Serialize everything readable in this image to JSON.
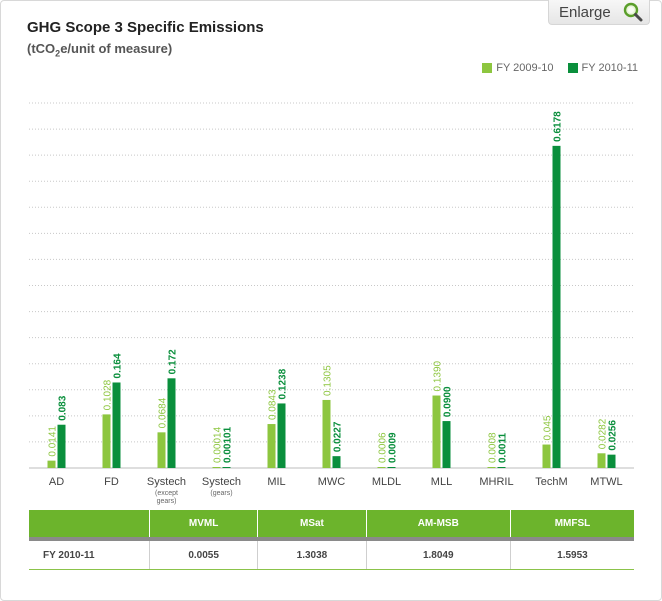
{
  "header": {
    "title": "GHG Scope 3 Specific Emissions",
    "subtitle_prefix": "(tCO",
    "subtitle_sub": "2",
    "subtitle_suffix": "e/unit of measure)"
  },
  "enlarge": {
    "label": "Enlarge",
    "icon": "magnifier-icon"
  },
  "colors": {
    "fy2009": "#8dc63f",
    "fy2010": "#0a8f3c",
    "table_header": "#6cb42c"
  },
  "chart_data": {
    "type": "bar",
    "title": "GHG Scope 3 Specific Emissions",
    "ylabel": "(tCO2e/unit of measure)",
    "legend": "top-right",
    "grid": true,
    "ylim": [
      0,
      0.7
    ],
    "categories": [
      {
        "label": "AD",
        "note": ""
      },
      {
        "label": "FD",
        "note": ""
      },
      {
        "label": "Systech",
        "note": "(except gears)"
      },
      {
        "label": "Systech",
        "note": "(gears)"
      },
      {
        "label": "MIL",
        "note": ""
      },
      {
        "label": "MWC",
        "note": ""
      },
      {
        "label": "MLDL",
        "note": ""
      },
      {
        "label": "MLL",
        "note": ""
      },
      {
        "label": "MHRIL",
        "note": ""
      },
      {
        "label": "TechM",
        "note": ""
      },
      {
        "label": "MTWL",
        "note": ""
      }
    ],
    "series": [
      {
        "name": "FY 2009-10",
        "color": "#8dc63f",
        "values": [
          0.0141,
          0.1028,
          0.0684,
          0.00014,
          0.0843,
          0.1305,
          0.0006,
          0.139,
          0.0008,
          0.045,
          0.0282
        ],
        "labels": [
          "0.0141",
          "0.1028",
          "0.0684",
          "0.00014",
          "0.0843",
          "0.1305",
          "0.0006",
          "0.1390",
          "0.0008",
          "0.045",
          "0.0282"
        ]
      },
      {
        "name": "FY 2010-11",
        "color": "#0a8f3c",
        "values": [
          0.083,
          0.164,
          0.172,
          0.00101,
          0.1238,
          0.0227,
          0.0009,
          0.09,
          0.0011,
          0.6178,
          0.0256
        ],
        "labels": [
          "0.083",
          "0.164",
          "0.172",
          "0.00101",
          "0.1238",
          "0.0227",
          "0.0009",
          "0.0900",
          "0.0011",
          "0.6178",
          "0.0256"
        ]
      }
    ]
  },
  "table": {
    "headers": [
      "",
      "MVML",
      "MSat",
      "AM-MSB",
      "MMFSL"
    ],
    "row_label": "FY 2010-11",
    "values": [
      "0.0055",
      "1.3038",
      "1.8049",
      "1.5953"
    ]
  }
}
